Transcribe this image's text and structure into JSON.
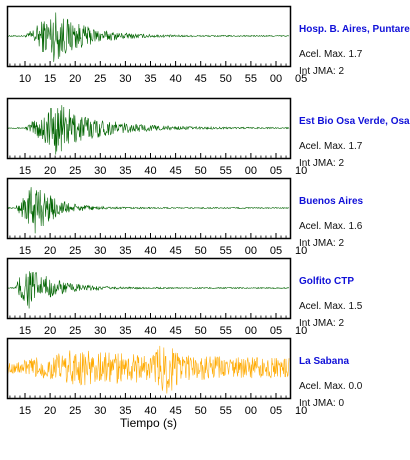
{
  "chart_data": {
    "type": "line",
    "xlabel": "Tiempo (s)",
    "panels": [
      {
        "station": "Hosp. B. Aires, Puntare",
        "acel_text": "Acel. Max. 1.7",
        "int_text": "Int JMA: 2",
        "color": "#006400",
        "tick_labels": [
          "10",
          "15",
          "20",
          "25",
          "30",
          "35",
          "40",
          "45",
          "50",
          "55",
          "00",
          "05"
        ],
        "envelope": {
          "onset_s": 10,
          "peak_s": 16,
          "peak_amp": 0.95,
          "decay_s": 6,
          "noise": 0.02,
          "burst_s": null,
          "burst_amp": 0
        }
      },
      {
        "station": "Est Bio Osa Verde, Osa",
        "acel_text": "Acel. Max. 1.7",
        "int_text": "Int JMA: 2",
        "color": "#006400",
        "tick_labels": [
          "15",
          "20",
          "25",
          "30",
          "35",
          "40",
          "45",
          "50",
          "55",
          "00",
          "05",
          "10"
        ],
        "envelope": {
          "onset_s": 15,
          "peak_s": 21,
          "peak_amp": 0.95,
          "decay_s": 8,
          "noise": 0.02,
          "burst_s": null,
          "burst_amp": 0
        }
      },
      {
        "station": "Buenos Aires",
        "acel_text": "Acel. Max. 1.6",
        "int_text": "Int JMA: 2",
        "color": "#006400",
        "tick_labels": [
          "15",
          "20",
          "25",
          "30",
          "35",
          "40",
          "45",
          "50",
          "55",
          "00",
          "05",
          "10"
        ],
        "envelope": {
          "onset_s": 13,
          "peak_s": 17,
          "peak_amp": 0.95,
          "decay_s": 4,
          "noise": 0.02,
          "burst_s": null,
          "burst_amp": 0
        }
      },
      {
        "station": "Golfito CTP",
        "acel_text": "Acel. Max. 1.5",
        "int_text": "Int JMA: 2",
        "color": "#006400",
        "tick_labels": [
          "15",
          "20",
          "25",
          "30",
          "35",
          "40",
          "45",
          "50",
          "55",
          "00",
          "05",
          "10"
        ],
        "envelope": {
          "onset_s": 13,
          "peak_s": 15,
          "peak_amp": 0.95,
          "decay_s": 5,
          "noise": 0.02,
          "burst_s": null,
          "burst_amp": 0
        }
      },
      {
        "station": "La Sabana",
        "acel_text": "Acel. Max. 0.0",
        "int_text": "Int JMA: 0",
        "color": "#ffaa00",
        "tick_labels": [
          "15",
          "20",
          "25",
          "30",
          "35",
          "40",
          "45",
          "50",
          "55",
          "00",
          "05",
          "10"
        ],
        "envelope": {
          "onset_s": 13,
          "peak_s": 24,
          "peak_amp": 0.45,
          "decay_s": 40,
          "noise": 0.2,
          "burst_s": 43,
          "burst_amp": 0.95
        }
      }
    ]
  }
}
